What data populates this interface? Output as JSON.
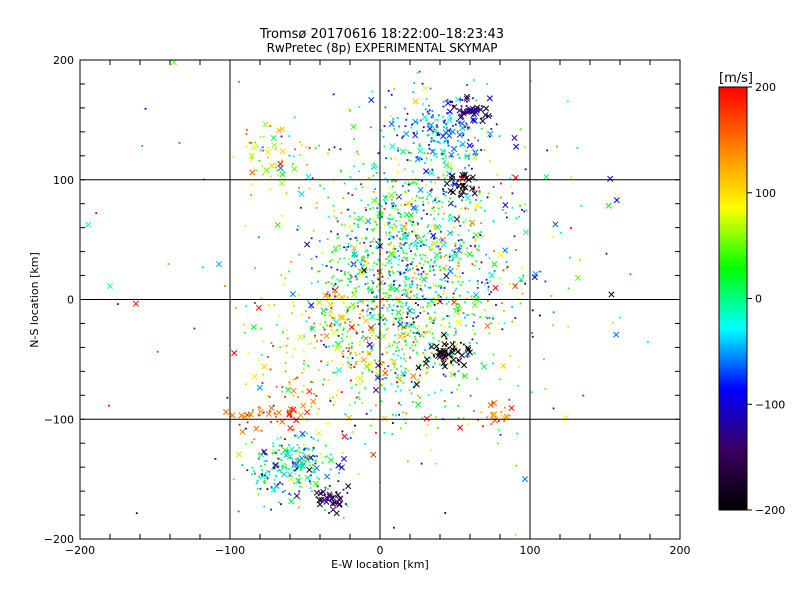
{
  "chart_data": {
    "type": "scatter",
    "title": "Tromsø 20170616 18:22:00–18:23:43",
    "subtitle": "RwPretec (8p) EXPERIMENTAL SKYMAP",
    "xlabel": "E-W location [km]",
    "ylabel": "N-S location [km]",
    "xlim": [
      -200,
      200
    ],
    "ylim": [
      -200,
      200
    ],
    "xticks": [
      "−200",
      "−100",
      "0",
      "100",
      "200"
    ],
    "yticks": [
      "200",
      "100",
      "0",
      "−100",
      "−200"
    ],
    "grid": true,
    "marker_types": [
      "dot",
      "x"
    ],
    "colorbar": {
      "label": "[m/s]",
      "range": [
        -200,
        200
      ],
      "ticks": [
        "200",
        "100",
        "0",
        "−100",
        "−200"
      ],
      "colormap": [
        "#000000",
        "#3a0060",
        "#0000ff",
        "#00ffff",
        "#00ff00",
        "#ffff00",
        "#ff8000",
        "#ff0000"
      ]
    },
    "clusters": [
      {
        "x": 15,
        "y": 20,
        "sx": 28,
        "sy": 55,
        "v": 10,
        "sv": 70,
        "n": 1300,
        "xf": 0.06
      },
      {
        "x": 40,
        "y": 140,
        "sx": 16,
        "sy": 14,
        "v": -55,
        "sv": 30,
        "n": 170,
        "xf": 0.15
      },
      {
        "x": 62,
        "y": 160,
        "sx": 8,
        "sy": 6,
        "v": -140,
        "sv": 25,
        "n": 45,
        "xf": 0.5
      },
      {
        "x": 55,
        "y": 95,
        "sx": 6,
        "sy": 4,
        "v": -195,
        "sv": 10,
        "n": 30,
        "xf": 0.7
      },
      {
        "x": 45,
        "y": -45,
        "sx": 8,
        "sy": 6,
        "v": -195,
        "sv": 10,
        "n": 60,
        "xf": 0.6
      },
      {
        "x": -60,
        "y": -140,
        "sx": 14,
        "sy": 14,
        "v": -30,
        "sv": 55,
        "n": 230,
        "xf": 0.2
      },
      {
        "x": -32,
        "y": -165,
        "sx": 6,
        "sy": 6,
        "v": -160,
        "sv": 25,
        "n": 40,
        "xf": 0.6
      },
      {
        "x": -70,
        "y": 120,
        "sx": 12,
        "sy": 14,
        "v": 80,
        "sv": 60,
        "n": 60,
        "xf": 0.3
      },
      {
        "x": -75,
        "y": -95,
        "sx": 14,
        "sy": 8,
        "v": 170,
        "sv": 25,
        "n": 45,
        "xf": 0.5
      },
      {
        "x": -30,
        "y": -40,
        "sx": 25,
        "sy": 30,
        "v": 100,
        "sv": 60,
        "n": 220,
        "xf": 0.15
      },
      {
        "x": 80,
        "y": -95,
        "sx": 8,
        "sy": 8,
        "v": 160,
        "sv": 30,
        "n": 25,
        "xf": 0.5
      },
      {
        "x": 70,
        "y": 40,
        "sx": 35,
        "sy": 60,
        "v": 20,
        "sv": 90,
        "n": 180,
        "xf": 0.2
      },
      {
        "x": 0,
        "y": 0,
        "sx": 90,
        "sy": 100,
        "v": 30,
        "sv": 110,
        "n": 190,
        "xf": 0.25
      }
    ]
  }
}
